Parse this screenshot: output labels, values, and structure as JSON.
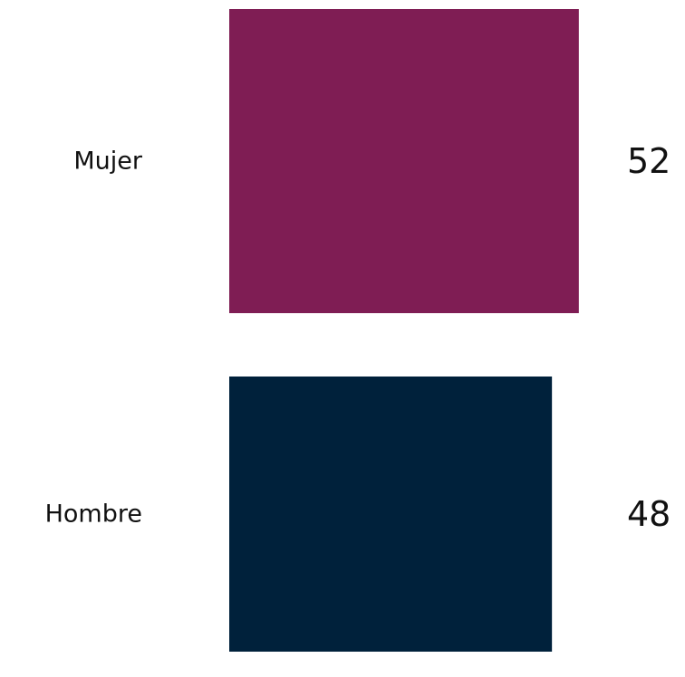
{
  "chart_data": {
    "type": "bar",
    "orientation": "horizontal",
    "categories": [
      "Mujer",
      "Hombre"
    ],
    "values": [
      52,
      48
    ],
    "colors": [
      "#7f1d54",
      "#00213b"
    ],
    "title": "",
    "xlabel": "",
    "ylabel": "",
    "grid": false,
    "legend": "none"
  }
}
